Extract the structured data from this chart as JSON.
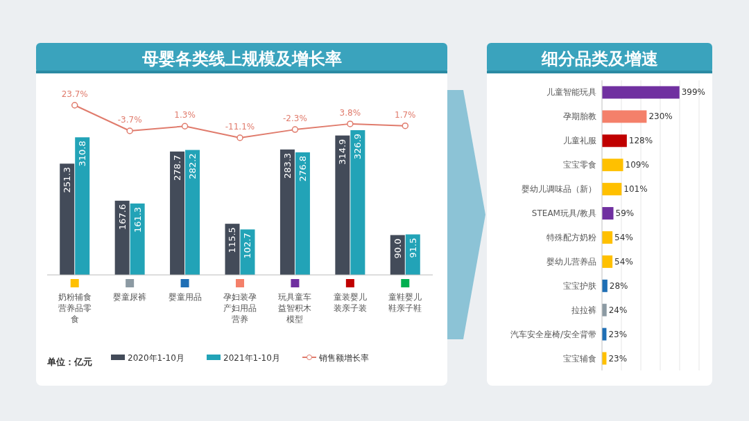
{
  "chart_data": [
    {
      "type": "bar",
      "title": "母婴各类线上规模及增长率",
      "categories": [
        "奶粉辅食营养品零食",
        "婴童尿裤",
        "婴童用品",
        "孕妇装孕产妇用品营养",
        "玩具童车益智积木模型",
        "童装婴儿装亲子装",
        "童鞋婴儿鞋亲子鞋"
      ],
      "series": [
        {
          "name": "2020年1-10月",
          "color": "#434b59",
          "values": [
            251.3,
            167.6,
            278.7,
            115.5,
            283.3,
            314.9,
            90.0
          ],
          "value_labels": [
            "251.3",
            "167.6",
            "278.7",
            "115.5",
            "283.3",
            "314.9",
            "90.0"
          ]
        },
        {
          "name": "2021年1-10月",
          "color": "#22a3b7",
          "values": [
            310.8,
            161.3,
            282.2,
            102.7,
            276.8,
            326.9,
            91.5
          ],
          "value_labels": [
            "310.8",
            "161.3",
            "282.2",
            "102.7",
            "276.8",
            "326.9",
            "91.5"
          ]
        },
        {
          "name": "销售额增长率",
          "type": "line",
          "axis": "y2",
          "color": "#e07b6c",
          "marker": "circle",
          "values": [
            23.7,
            -3.7,
            1.3,
            -11.1,
            -2.3,
            3.8,
            1.7
          ],
          "value_labels": [
            "23.7%",
            "-3.7%",
            "1.3%",
            "-11.1%",
            "-2.3%",
            "3.8%",
            "1.7%"
          ]
        }
      ],
      "legend": "bottom",
      "annotations": [
        "单位：亿元"
      ]
    },
    {
      "type": "bar",
      "orientation": "horizontal",
      "title": "细分品类及增速",
      "categories": [
        "儿童智能玩具",
        "孕期胎教",
        "儿童礼服",
        "宝宝零食",
        "婴幼儿调味品（新）",
        "STEAM玩具/教具",
        "特殊配方奶粉",
        "婴幼儿营养品",
        "宝宝护肤",
        "拉拉裤",
        "汽车安全座椅/安全背带",
        "宝宝辅食"
      ],
      "values": [
        399,
        230,
        128,
        109,
        101,
        59,
        54,
        54,
        28,
        24,
        23,
        23
      ],
      "colors": [
        "#7030a0",
        "#f4806a",
        "#c00000",
        "#ffc000",
        "#ffc000",
        "#7030a0",
        "#ffc000",
        "#ffc000",
        "#1f6fb5",
        "#8c9aa3",
        "#1f6fb5",
        "#ffc000"
      ],
      "value_labels": [
        "399%",
        "230%",
        "128%",
        "109%",
        "101%",
        "59%",
        "54%",
        "54%",
        "28%",
        "24%",
        "23%",
        "23%"
      ],
      "xlim": [
        0,
        500
      ],
      "xticks": [
        {
          "value": 0,
          "label": null
        },
        {
          "value": 100,
          "label": null
        },
        {
          "value": 200,
          "label": null
        },
        {
          "value": 300,
          "label": null
        },
        {
          "value": 400,
          "label": null
        },
        {
          "value": 500,
          "label": null
        }
      ],
      "grid": "x",
      "tick_labels": "y"
    }
  ]
}
